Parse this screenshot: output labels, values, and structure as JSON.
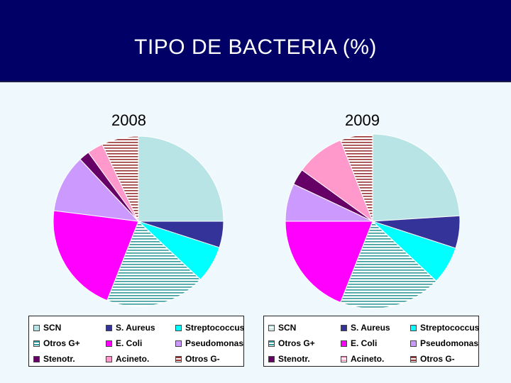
{
  "header": {
    "title": "TIPO DE BACTERIA (%)"
  },
  "chart_data": [
    {
      "type": "pie",
      "title": "2008",
      "labels": [
        "SCN",
        "S. Aureus",
        "Streptococcus",
        "Otros G+",
        "E. Coli",
        "Pseudomonas",
        "Stenotr.",
        "Acineto.",
        "Otros G-"
      ],
      "values": [
        25,
        5,
        7,
        19,
        21,
        11,
        2,
        3,
        7
      ]
    },
    {
      "type": "pie",
      "title": "2009",
      "labels": [
        "SCN",
        "S. Aureus",
        "Streptococcus",
        "Otros G+",
        "E. Coli",
        "Pseudomonas",
        "Stenotr.",
        "Acineto.",
        "Otros G-"
      ],
      "values": [
        24,
        6,
        7,
        19,
        19,
        7,
        3,
        9,
        6
      ]
    }
  ],
  "series_colors": [
    "#b9e4e6",
    "#333399",
    "#00ffff",
    "#339999",
    "#ff00ff",
    "#cc99ff",
    "#660066",
    "#ff99cc",
    "#993333"
  ],
  "legend_2008": {
    "items": [
      "SCN",
      "S. Aureus",
      "Streptococcus",
      "Otros G+",
      "E. Coli",
      "Pseudomonas",
      "Stenotr.",
      "Acineto.",
      "Otros G-"
    ]
  },
  "legend_2009": {
    "items": [
      "SCN",
      "S. Aureus",
      "Streptococcus",
      "Otros G+",
      "E. Coli",
      "Pseudomonas",
      "Stenotr.",
      "Acineto.",
      "Otros G-"
    ]
  }
}
